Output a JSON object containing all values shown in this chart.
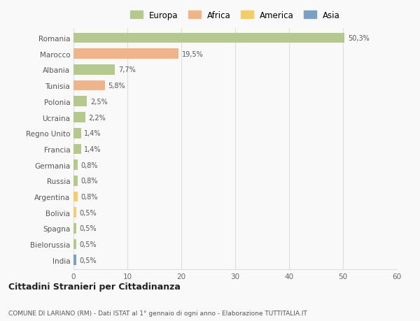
{
  "countries": [
    "Romania",
    "Marocco",
    "Albania",
    "Tunisia",
    "Polonia",
    "Ucraina",
    "Regno Unito",
    "Francia",
    "Germania",
    "Russia",
    "Argentina",
    "Bolivia",
    "Spagna",
    "Bielorussia",
    "India"
  ],
  "values": [
    50.3,
    19.5,
    7.7,
    5.8,
    2.5,
    2.2,
    1.4,
    1.4,
    0.8,
    0.8,
    0.8,
    0.5,
    0.5,
    0.5,
    0.5
  ],
  "labels": [
    "50,3%",
    "19,5%",
    "7,7%",
    "5,8%",
    "2,5%",
    "2,2%",
    "1,4%",
    "1,4%",
    "0,8%",
    "0,8%",
    "0,8%",
    "0,5%",
    "0,5%",
    "0,5%",
    "0,5%"
  ],
  "colors": [
    "#b5c98e",
    "#f0b48a",
    "#b5c98e",
    "#f0b48a",
    "#b5c98e",
    "#b5c98e",
    "#b5c98e",
    "#b5c98e",
    "#b5c98e",
    "#b5c98e",
    "#f5cc6a",
    "#f5cc6a",
    "#b5c98e",
    "#b5c98e",
    "#7aa0c4"
  ],
  "legend": [
    {
      "label": "Europa",
      "color": "#b5c98e"
    },
    {
      "label": "Africa",
      "color": "#f0b48a"
    },
    {
      "label": "America",
      "color": "#f5cc6a"
    },
    {
      "label": "Asia",
      "color": "#7aa0c4"
    }
  ],
  "xlim": [
    0,
    60
  ],
  "xticks": [
    0,
    10,
    20,
    30,
    40,
    50,
    60
  ],
  "title": "Cittadini Stranieri per Cittadinanza",
  "subtitle": "COMUNE DI LARIANO (RM) - Dati ISTAT al 1° gennaio di ogni anno - Elaborazione TUTTITALIA.IT",
  "bg_color": "#f9f9f9",
  "grid_color": "#dddddd"
}
